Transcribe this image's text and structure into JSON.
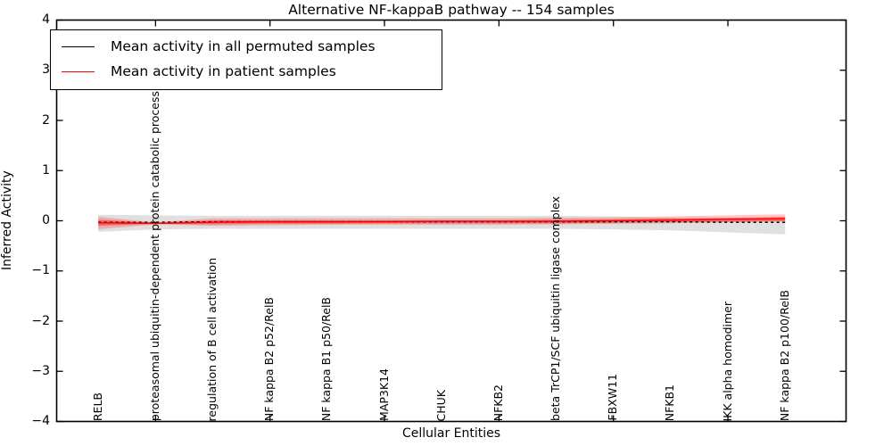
{
  "window": {
    "background": "#ffffff"
  },
  "colors": {
    "permuted_line": "#000000",
    "patient_line": "#ff0000",
    "permuted_band": "#e0e0e0",
    "patient_band": "#ff0000",
    "axis": "#000000"
  },
  "legend": {
    "entries": [
      {
        "label": "Mean activity in all permuted samples",
        "color": "#000000"
      },
      {
        "label": "Mean activity in patient samples",
        "color": "#ff0000"
      }
    ],
    "position": "upper left"
  },
  "chart_data": {
    "type": "line",
    "title": "Alternative NF-kappaB pathway -- 154 samples",
    "xlabel": "Cellular Entities",
    "ylabel": "Inferred Activity",
    "ylim": [
      -4,
      4
    ],
    "grid": false,
    "y_ticks": [
      {
        "value": 4,
        "label": "4"
      },
      {
        "value": 3,
        "label": "3"
      },
      {
        "value": 2,
        "label": "2"
      },
      {
        "value": 1,
        "label": "1"
      },
      {
        "value": 0,
        "label": "0"
      },
      {
        "value": -1,
        "label": "−1"
      },
      {
        "value": -2,
        "label": "−2"
      },
      {
        "value": -3,
        "label": "−3"
      },
      {
        "value": -4,
        "label": "−4"
      }
    ],
    "x_major_tick_category_indices": [
      1,
      3,
      5,
      7,
      9,
      11
    ],
    "categories": [
      "RELB",
      "proteasomal ubiquitin-dependent protein catabolic process",
      "regulation of B cell activation",
      "NF kappa B2 p52/RelB",
      "NF kappa B1 p50/RelB",
      "MAP3K14",
      "CHUK",
      "NFKB2",
      "beta TrCP1/SCF ubiquitin ligase complex",
      "FBXW11",
      "NFKB1",
      "IKK alpha homodimer",
      "NF kappa B2 p100/RelB"
    ],
    "series": [
      {
        "name": "Mean activity in all permuted samples",
        "color": "#000000",
        "style": "dashed",
        "values": [
          -0.03,
          -0.03,
          -0.02,
          -0.02,
          -0.02,
          -0.02,
          -0.02,
          -0.02,
          -0.02,
          -0.02,
          -0.02,
          -0.03,
          -0.03
        ]
      },
      {
        "name": "Mean activity in patient samples",
        "color": "#ff0000",
        "style": "solid",
        "values": [
          -0.04,
          -0.05,
          -0.03,
          -0.02,
          -0.02,
          -0.02,
          -0.01,
          -0.01,
          -0.01,
          0.0,
          0.01,
          0.03,
          0.04
        ]
      }
    ],
    "bands": [
      {
        "name": "permuted-samples-range",
        "color": "#e0e0e0",
        "opacity": 1,
        "upper": [
          0.12,
          0.11,
          0.1,
          0.1,
          0.1,
          0.1,
          0.1,
          0.1,
          0.1,
          0.09,
          0.06,
          0.03,
          0.01
        ],
        "lower": [
          -0.22,
          -0.17,
          -0.16,
          -0.16,
          -0.16,
          -0.16,
          -0.16,
          -0.16,
          -0.16,
          -0.17,
          -0.19,
          -0.23,
          -0.27
        ]
      },
      {
        "name": "patient-samples-range-outer",
        "color": "#ff0000",
        "opacity": 0.22,
        "upper": [
          0.08,
          -0.03,
          0.05,
          0.05,
          0.05,
          0.05,
          0.05,
          0.05,
          0.06,
          0.07,
          0.09,
          0.11,
          0.13
        ],
        "lower": [
          -0.17,
          -0.07,
          -0.1,
          -0.09,
          -0.08,
          -0.08,
          -0.08,
          -0.08,
          -0.07,
          -0.06,
          -0.05,
          -0.03,
          -0.01
        ]
      },
      {
        "name": "patient-samples-range-inner",
        "color": "#ff0000",
        "opacity": 0.38,
        "upper": [
          0.02,
          -0.04,
          0.01,
          0.01,
          0.01,
          0.01,
          0.01,
          0.01,
          0.02,
          0.03,
          0.05,
          0.06,
          0.08
        ],
        "lower": [
          -0.1,
          -0.06,
          -0.07,
          -0.06,
          -0.06,
          -0.05,
          -0.05,
          -0.05,
          -0.05,
          -0.04,
          -0.03,
          -0.02,
          -0.01
        ]
      }
    ]
  }
}
